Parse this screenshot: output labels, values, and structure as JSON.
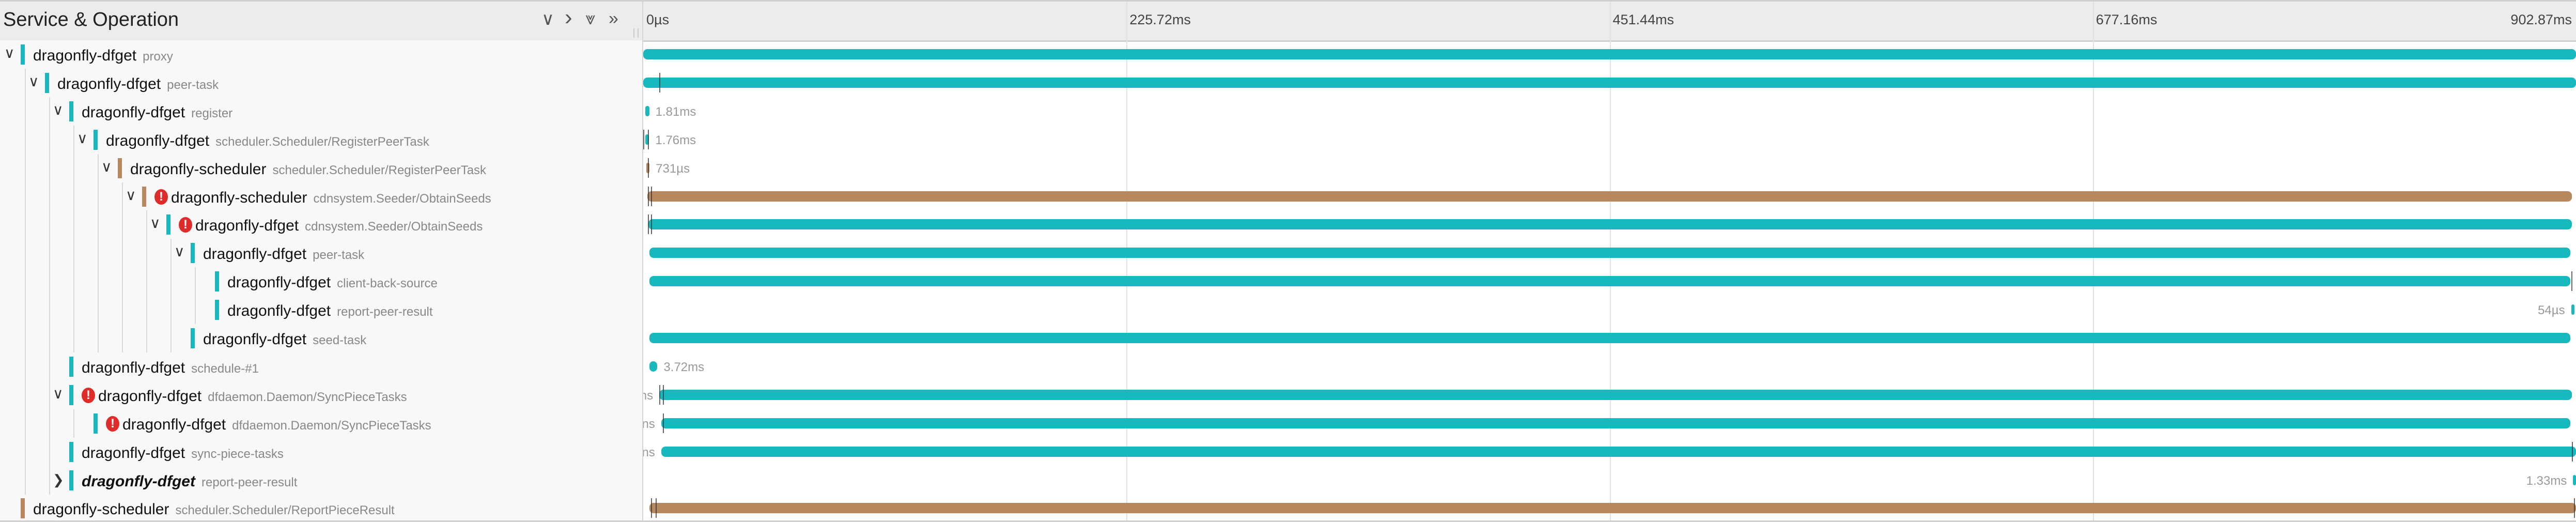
{
  "header": {
    "title": "Service & Operation",
    "buttons": [
      {
        "name": "collapse-one-button",
        "glyph": "∨"
      },
      {
        "name": "expand-one-button",
        "glyph": "›"
      },
      {
        "name": "collapse-all-button",
        "glyph": "⩔"
      },
      {
        "name": "expand-all-button",
        "glyph": "»"
      }
    ],
    "ticks": [
      "0µs",
      "225.72ms",
      "451.44ms",
      "677.16ms",
      "902.87ms"
    ]
  },
  "colors": {
    "dragonfly-dfget": "#17b8be",
    "dragonfly-scheduler": "#b7885e",
    "error": "#e02b2b"
  },
  "timeline": {
    "start_ms": 0,
    "end_ms": 902.87
  },
  "spans": [
    {
      "service": "dragonfly-dfget",
      "operation": "proxy",
      "depth": 0,
      "toggle": "expanded",
      "error": false,
      "start": 0,
      "end": 902.87,
      "duration_label": "",
      "logs": []
    },
    {
      "service": "dragonfly-dfget",
      "operation": "peer-task",
      "depth": 1,
      "toggle": "expanded",
      "error": false,
      "start": 0,
      "end": 902.87,
      "duration_label": "",
      "logs": [
        7.5
      ]
    },
    {
      "service": "dragonfly-dfget",
      "operation": "register",
      "depth": 2,
      "toggle": "expanded",
      "error": false,
      "start": 1.0,
      "end": 2.81,
      "duration_label": "1.81ms",
      "label_side": "right",
      "logs": []
    },
    {
      "service": "dragonfly-dfget",
      "operation": "scheduler.Scheduler/RegisterPeerTask",
      "depth": 3,
      "toggle": "expanded",
      "error": false,
      "start": 1.0,
      "end": 2.76,
      "duration_label": "1.76ms",
      "label_side": "right",
      "logs": [
        0,
        2.2
      ]
    },
    {
      "service": "dragonfly-scheduler",
      "operation": "scheduler.Scheduler/RegisterPeerTask",
      "depth": 4,
      "toggle": "expanded",
      "error": false,
      "start": 1.5,
      "end": 2.23,
      "duration_label": "731µs",
      "label_side": "right",
      "logs": [
        2.2
      ]
    },
    {
      "service": "dragonfly-scheduler",
      "operation": "cdnsystem.Seeder/ObtainSeeds",
      "depth": 5,
      "toggle": "expanded",
      "error": true,
      "start": 2.0,
      "end": 900.9,
      "duration_label": "",
      "logs": [
        2.2,
        3.6
      ]
    },
    {
      "service": "dragonfly-dfget",
      "operation": "cdnsystem.Seeder/ObtainSeeds",
      "depth": 6,
      "toggle": "expanded",
      "error": true,
      "start": 2.5,
      "end": 900.9,
      "duration_label": "",
      "logs": [
        2.2,
        3.6
      ]
    },
    {
      "service": "dragonfly-dfget",
      "operation": "peer-task",
      "depth": 7,
      "toggle": "expanded",
      "error": false,
      "start": 2.9,
      "end": 900.2,
      "duration_label": "",
      "logs": []
    },
    {
      "service": "dragonfly-dfget",
      "operation": "client-back-source",
      "depth": 8,
      "toggle": "none",
      "error": false,
      "start": 2.9,
      "end": 900.2,
      "duration_label": "",
      "logs": [
        900.6
      ]
    },
    {
      "service": "dragonfly-dfget",
      "operation": "report-peer-result",
      "depth": 8,
      "toggle": "none",
      "error": false,
      "start": 900.6,
      "end": 900.654,
      "duration_label": "54µs",
      "label_side": "left",
      "logs": []
    },
    {
      "service": "dragonfly-dfget",
      "operation": "seed-task",
      "depth": 7,
      "toggle": "none",
      "error": false,
      "start": 2.9,
      "end": 900.2,
      "duration_label": "",
      "logs": []
    },
    {
      "service": "dragonfly-dfget",
      "operation": "schedule-#1",
      "depth": 2,
      "toggle": "none",
      "error": false,
      "start": 2.9,
      "end": 6.62,
      "duration_label": "3.72ms",
      "label_side": "right",
      "logs": []
    },
    {
      "service": "dragonfly-dfget",
      "operation": "dfdaemon.Daemon/SyncPieceTasks",
      "depth": 2,
      "toggle": "expanded",
      "error": true,
      "start": 7.5,
      "end": 900.9,
      "duration_label": "ns",
      "label_side": "left",
      "logs": [
        7.5,
        9.2
      ]
    },
    {
      "service": "dragonfly-dfget",
      "operation": "dfdaemon.Daemon/SyncPieceTasks",
      "depth": 3,
      "toggle": "none",
      "error": true,
      "start": 8.4,
      "end": 900.2,
      "duration_label": "ns",
      "label_side": "left",
      "logs": [
        9.2
      ]
    },
    {
      "service": "dragonfly-dfget",
      "operation": "sync-piece-tasks",
      "depth": 2,
      "toggle": "none",
      "error": false,
      "start": 8.4,
      "end": 902.87,
      "duration_label": "ns",
      "label_side": "left",
      "logs": [
        901.0
      ]
    },
    {
      "service": "dragonfly-dfget",
      "operation": "report-peer-result",
      "depth": 2,
      "toggle": "collapsed",
      "error": false,
      "bold": true,
      "start": 901.5,
      "end": 902.83,
      "duration_label": "1.33ms",
      "label_side": "left",
      "logs": []
    },
    {
      "service": "dragonfly-scheduler",
      "operation": "scheduler.Scheduler/ReportPieceResult",
      "depth": 0,
      "toggle": "none",
      "error": false,
      "start": 2.9,
      "end": 902.87,
      "duration_label": "",
      "logs": [
        3.6,
        5.8,
        902.0
      ]
    }
  ]
}
